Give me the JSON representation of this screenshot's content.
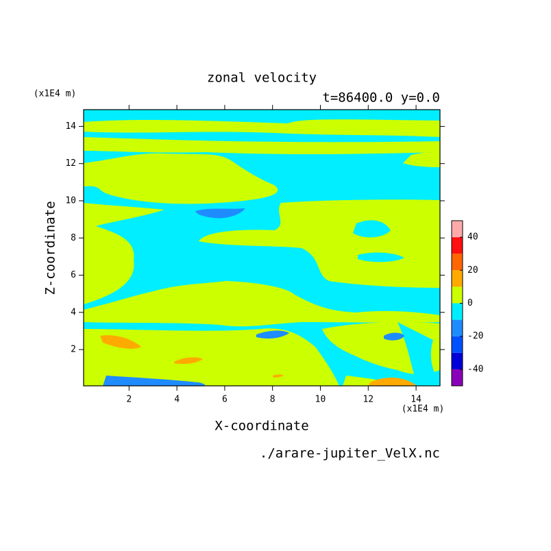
{
  "chart_data": {
    "type": "contour",
    "title": "zonal velocity",
    "subtitle": "t=86400.0 y=0.0",
    "xlabel": "X-coordinate",
    "ylabel": "Z-coordinate",
    "xunit": "(x1E4 m)",
    "yunit": "(x1E4 m)",
    "source": "./arare-jupiter_VelX.nc",
    "xlim": [
      0.1,
      15
    ],
    "ylim": [
      0.05,
      14.9
    ],
    "xticks": [
      2,
      4,
      6,
      8,
      10,
      12,
      14
    ],
    "yticks": [
      2,
      4,
      6,
      8,
      10,
      12,
      14
    ],
    "colorbar": {
      "levels": [
        -50,
        -40,
        -30,
        -20,
        -10,
        0,
        10,
        20,
        30,
        40,
        50
      ],
      "colors": [
        "#8a00b8",
        "#0000d8",
        "#0050ff",
        "#1e8cff",
        "#00eeff",
        "#ccff00",
        "#ffaa00",
        "#ff6600",
        "#ff1010",
        "#ffaaaa"
      ],
      "ticks": [
        -40,
        -20,
        0,
        20,
        40
      ]
    }
  }
}
